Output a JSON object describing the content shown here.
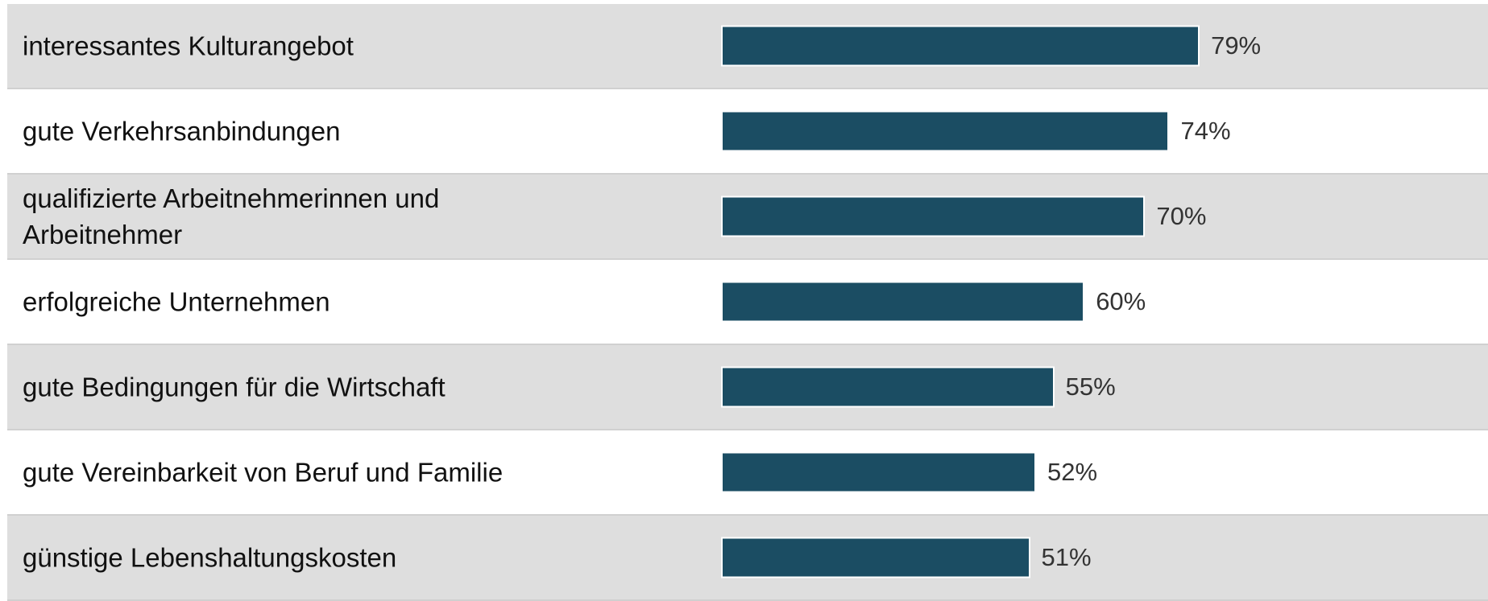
{
  "chart_data": {
    "type": "bar",
    "orientation": "horizontal",
    "categories": [
      "interessantes Kulturangebot",
      "gute Verkehrsanbindungen",
      "qualifizierte Arbeitnehmerinnen und Arbeitnehmer",
      "erfolgreiche Unternehmen",
      "gute Bedingungen für die Wirtschaft",
      "gute Vereinbarkeit von Beruf und Familie",
      "günstige Lebenshaltungskosten"
    ],
    "values": [
      79,
      74,
      70,
      60,
      55,
      52,
      51
    ],
    "value_labels": [
      "79%",
      "74%",
      "70%",
      "60%",
      "55%",
      "52%",
      "51%"
    ],
    "color": "#1b4d63",
    "xlim": [
      0,
      100
    ]
  }
}
